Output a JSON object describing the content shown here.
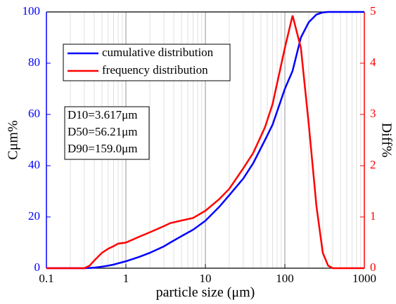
{
  "chart_data": {
    "type": "line",
    "xlabel": "particle size (μm)",
    "ylabel": "Cμm%",
    "y2label": "Diff%",
    "xscale": "log",
    "grid": true,
    "legend": "upper left",
    "xlim": [
      0.1,
      1000
    ],
    "xticks": [
      0.1,
      1,
      10,
      100,
      1000
    ],
    "ylim": [
      0,
      100
    ],
    "yticks": [
      0,
      20,
      40,
      60,
      80,
      100
    ],
    "y2lim": [
      0,
      5
    ],
    "y2ticks": [
      0,
      1,
      2,
      3,
      4,
      5
    ],
    "annotations": [
      "D10=3.617μm",
      "D50=56.21μm",
      "D90=159.0μm"
    ],
    "x": [
      0.1,
      0.3,
      0.35,
      0.4,
      0.5,
      0.6,
      0.7,
      0.8,
      1,
      1.5,
      2,
      3,
      3.617,
      5,
      7,
      10,
      15,
      20,
      30,
      40,
      56.21,
      70,
      100,
      125,
      159,
      200,
      250,
      300,
      350,
      400,
      1000
    ],
    "series": [
      {
        "name": "cumulative distribution",
        "color": "#0000ff",
        "values": [
          0,
          0,
          0.1,
          0.2,
          0.6,
          1,
          1.4,
          1.9,
          2.7,
          4.5,
          6,
          8.5,
          10,
          12.5,
          15,
          18.5,
          24,
          28.5,
          35,
          41,
          50,
          56,
          70,
          77,
          90,
          96,
          99,
          99.8,
          100,
          100,
          100
        ]
      },
      {
        "name": "frequency distribution",
        "color": "#ff0000",
        "axis": "y2",
        "values": [
          0,
          0,
          0.05,
          0.15,
          0.3,
          0.38,
          0.43,
          0.48,
          0.5,
          0.62,
          0.7,
          0.82,
          0.88,
          0.93,
          0.98,
          1.12,
          1.35,
          1.55,
          1.95,
          2.25,
          2.75,
          3.2,
          4.3,
          4.93,
          4.3,
          2.8,
          1.2,
          0.3,
          0.05,
          0,
          0
        ]
      }
    ]
  }
}
